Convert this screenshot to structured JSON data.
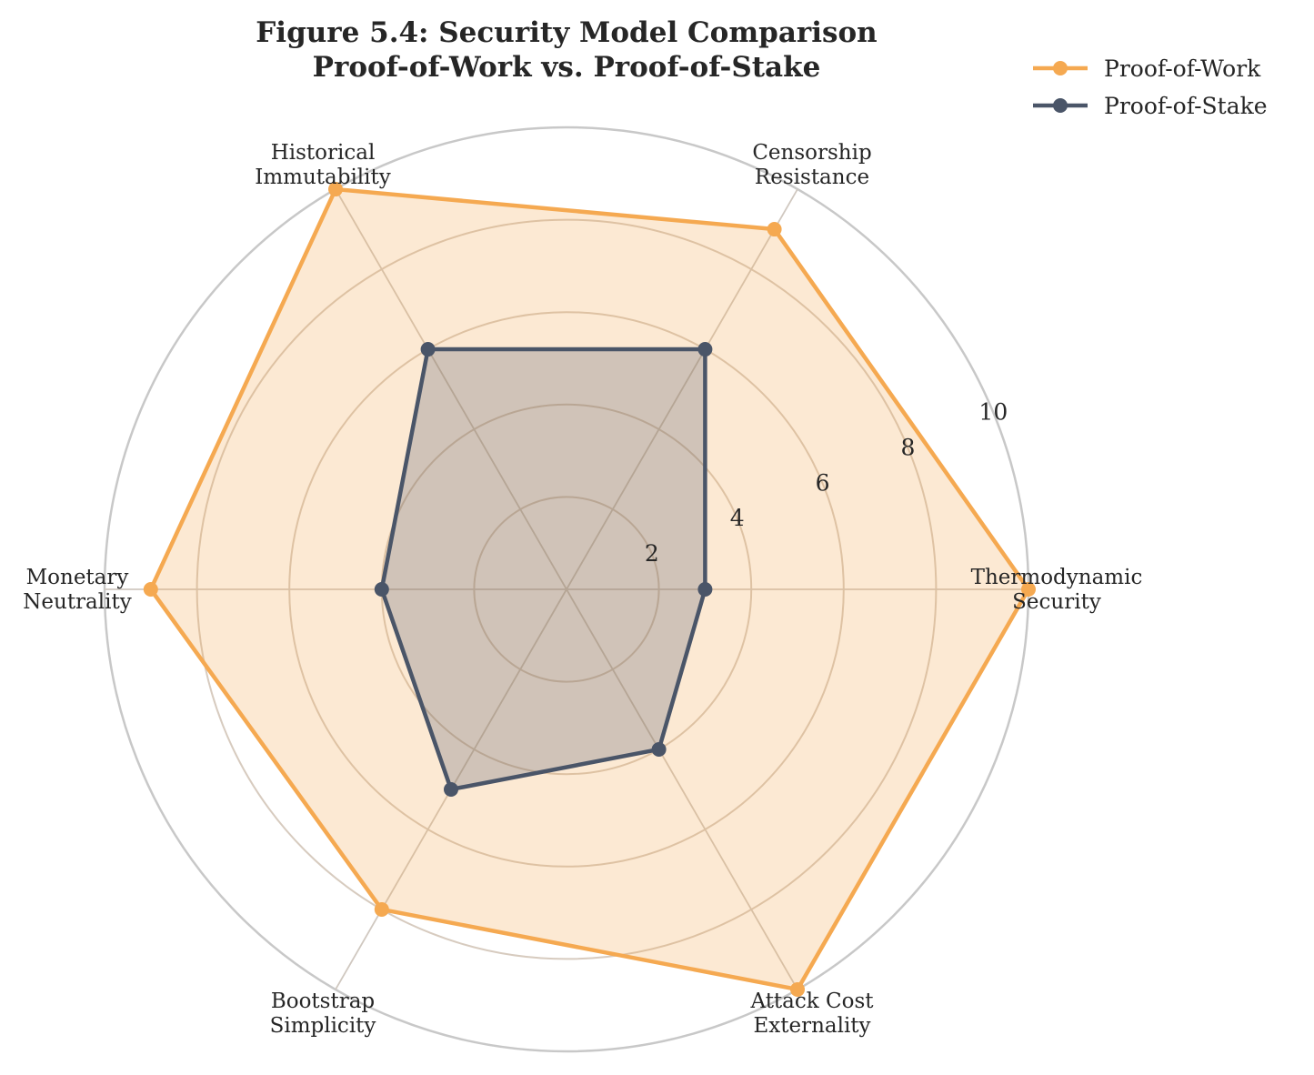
{
  "chart_data": {
    "type": "radar",
    "title": "Figure 5.4: Security Model Comparison",
    "subtitle": "Proof-of-Work vs. Proof-of-Stake",
    "categories": [
      [
        "Thermodynamic",
        "Security"
      ],
      [
        "Censorship",
        "Resistance"
      ],
      [
        "Historical",
        "Immutability"
      ],
      [
        "Monetary",
        "Neutrality"
      ],
      [
        "Bootstrap",
        "Simplicity"
      ],
      [
        "Attack Cost",
        "Externality"
      ]
    ],
    "radial_ticks": [
      2,
      4,
      6,
      8,
      10
    ],
    "rlim": [
      0,
      10
    ],
    "grid": true,
    "legend_position": "top-right",
    "series": [
      {
        "name": "Proof-of-Work",
        "color": "#f5a951",
        "values": [
          10,
          9,
          10,
          9,
          8,
          10
        ]
      },
      {
        "name": "Proof-of-Stake",
        "color": "#4a5568",
        "values": [
          3,
          6,
          6,
          4,
          5,
          4
        ]
      }
    ]
  }
}
